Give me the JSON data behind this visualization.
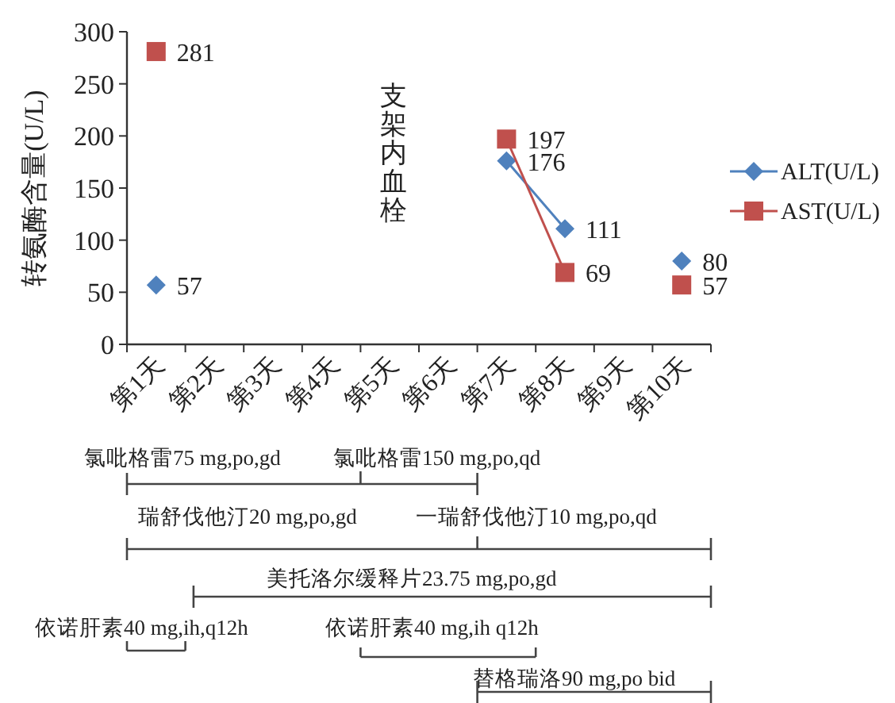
{
  "chart_data": {
    "type": "line",
    "ylabel": "转氨酶含量(U/L)",
    "categories": [
      "第1天",
      "第2天",
      "第3天",
      "第4天",
      "第5天",
      "第6天",
      "第7天",
      "第8天",
      "第9天",
      "第10天"
    ],
    "series": [
      {
        "name": "ALT(U/L)",
        "color": "#4f81bd",
        "marker": "diamond",
        "values": [
          57,
          null,
          null,
          null,
          null,
          null,
          176,
          111,
          null,
          80
        ]
      },
      {
        "name": "AST(U/L)",
        "color": "#c0504d",
        "marker": "square",
        "values": [
          281,
          null,
          null,
          null,
          null,
          null,
          197,
          69,
          null,
          57
        ]
      }
    ],
    "ylim": [
      0,
      300
    ],
    "yticks": [
      0,
      50,
      100,
      150,
      200,
      250,
      300
    ],
    "data_labels": true,
    "legend": "right",
    "grid": false,
    "annotations": [
      "支架内血栓",
      "氯吡格雷75 mg,po,gd",
      "氯吡格雷150 mg,po,qd",
      "瑞舒伐他汀20 mg,po,gd",
      "一瑞舒伐他汀10 mg,po,qd",
      "美托洛尔缓释片23.75 mg,po,gd",
      "依诺肝素40 mg,ih,q12h",
      "依诺肝素40 mg,ih q12h",
      "替格瑞洛90 mg,po bid"
    ]
  }
}
